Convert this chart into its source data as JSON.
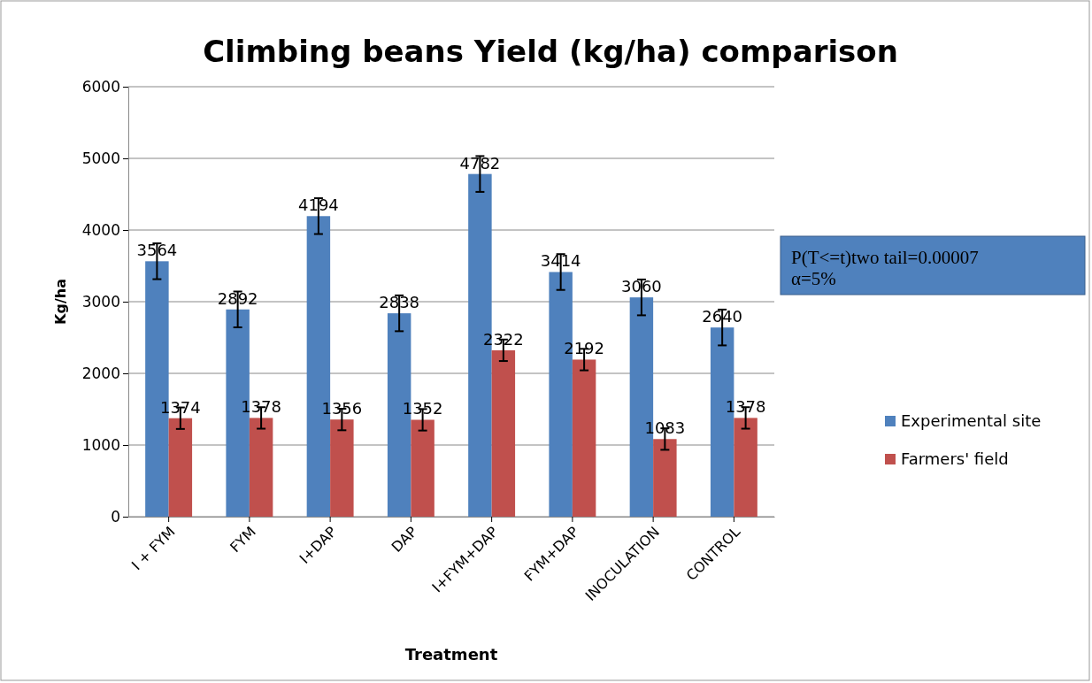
{
  "chart_data": {
    "type": "bar",
    "title": "Climbing beans Yield (kg/ha) comparison",
    "xlabel": "Treatment",
    "ylabel": "Kg/ha",
    "categories": [
      "I + FYM",
      "FYM",
      "I+DAP",
      "DAP",
      "I+FYM+DAP",
      "FYM+DAP",
      "INOCULATION",
      "CONTROL"
    ],
    "series": [
      {
        "name": "Experimental site",
        "color": "#4f81bd",
        "values": [
          3564,
          2892,
          4194,
          2838,
          4782,
          3414,
          3060,
          2640
        ],
        "errors": [
          250,
          250,
          250,
          250,
          250,
          250,
          250,
          250
        ]
      },
      {
        "name": "Farmers' field",
        "color": "#c0504d",
        "values": [
          1374,
          1378,
          1356,
          1352,
          2322,
          2192,
          1083,
          1378
        ],
        "errors": [
          150,
          150,
          150,
          150,
          150,
          150,
          150,
          150
        ]
      }
    ],
    "ylim": [
      0,
      6000
    ],
    "yticks": [
      0,
      1000,
      2000,
      3000,
      4000,
      5000,
      6000
    ],
    "grid": "y",
    "legend": "right",
    "data_labels": true,
    "annotations": [
      "P(T<=t)two tail=0.00007\nα=5%"
    ]
  }
}
